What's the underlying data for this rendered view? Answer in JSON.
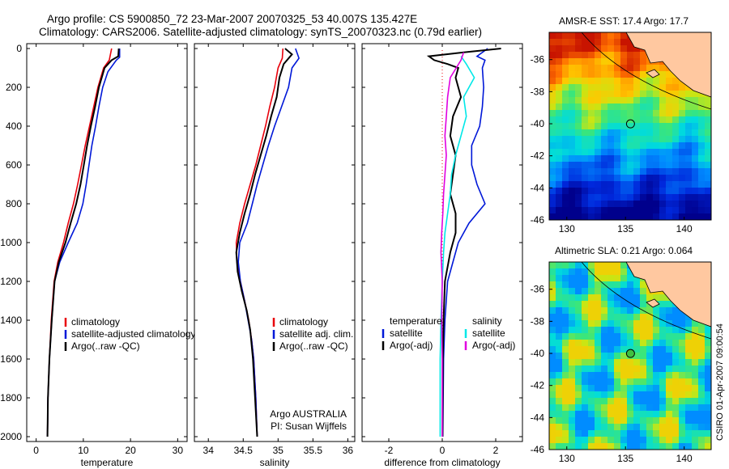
{
  "header": {
    "line1": "Argo profile: CS 5900850_72 23-Mar-2007 20070325_53 40.007S 135.427E",
    "line2": "Climatology: CARS2006. Satellite-adjusted climatology: synTS_20070323.nc (0.79d earlier)"
  },
  "side_label": "CSIRO 01-Apr-2007 09:00:54",
  "colors": {
    "climatology": "#e8000b",
    "satellite": "#0018d8",
    "argo": "#000000",
    "sat_salinity": "#00e8e8",
    "argo_salinity": "#e000e0",
    "land": "#ffc8a0"
  },
  "chart_data": [
    {
      "type": "line",
      "xlabel": "temperature",
      "ylim": [
        2000,
        0
      ],
      "xlim": [
        -2,
        32
      ],
      "xticks": [
        0,
        10,
        20,
        30
      ],
      "yticks": [
        0,
        200,
        400,
        600,
        800,
        1000,
        1200,
        1400,
        1600,
        1800,
        2000
      ],
      "legend": [
        "climatology",
        "satellite-adjusted climatology",
        "Argo(..raw -QC)"
      ],
      "series": [
        {
          "name": "climatology",
          "color": "#e8000b",
          "points": [
            [
              16,
              0
            ],
            [
              15.5,
              60
            ],
            [
              14.3,
              100
            ],
            [
              13.1,
              200
            ],
            [
              12.2,
              300
            ],
            [
              11.3,
              400
            ],
            [
              10.4,
              500
            ],
            [
              9.6,
              600
            ],
            [
              8.8,
              700
            ],
            [
              7.9,
              800
            ],
            [
              6.8,
              900
            ],
            [
              5.8,
              1000
            ],
            [
              4.6,
              1100
            ],
            [
              3.8,
              1200
            ],
            [
              3.2,
              1400
            ],
            [
              2.8,
              1600
            ],
            [
              2.5,
              1800
            ],
            [
              2.4,
              2000
            ]
          ]
        },
        {
          "name": "satellite-adjusted climatology",
          "color": "#0018d8",
          "points": [
            [
              17.7,
              0
            ],
            [
              17.7,
              45
            ],
            [
              17,
              60
            ],
            [
              15.2,
              120
            ],
            [
              14.1,
              200
            ],
            [
              13.3,
              300
            ],
            [
              12.6,
              400
            ],
            [
              11.8,
              500
            ],
            [
              11.2,
              600
            ],
            [
              10.6,
              700
            ],
            [
              9.9,
              800
            ],
            [
              8.7,
              900
            ],
            [
              6.8,
              1000
            ],
            [
              5,
              1100
            ],
            [
              3.9,
              1200
            ],
            [
              3.3,
              1400
            ],
            [
              2.8,
              1600
            ],
            [
              2.5,
              1800
            ],
            [
              2.4,
              2000
            ]
          ]
        },
        {
          "name": "Argo(..raw -QC)",
          "color": "#000000",
          "points": [
            [
              17.5,
              0
            ],
            [
              17.4,
              40
            ],
            [
              16,
              60
            ],
            [
              14.5,
              100
            ],
            [
              13.3,
              200
            ],
            [
              12.5,
              300
            ],
            [
              11.6,
              400
            ],
            [
              10.8,
              500
            ],
            [
              10.1,
              600
            ],
            [
              9.4,
              700
            ],
            [
              8.5,
              800
            ],
            [
              7.3,
              900
            ],
            [
              6.2,
              1000
            ],
            [
              4.8,
              1100
            ],
            [
              3.9,
              1200
            ],
            [
              3.3,
              1400
            ],
            [
              2.8,
              1600
            ],
            [
              2.5,
              1800
            ],
            [
              2.4,
              2000
            ]
          ]
        }
      ]
    },
    {
      "type": "line",
      "xlabel": "salinity",
      "ylim": [
        2000,
        0
      ],
      "xlim": [
        33.8,
        36.1
      ],
      "xticks": [
        34,
        34.5,
        35,
        35.5,
        36
      ],
      "legend": [
        "climatology",
        "satellite adj. clim.",
        "Argo(..raw -QC)"
      ],
      "annotation": [
        "Argo AUSTRALIA",
        "PI: Susan Wijffels"
      ],
      "series": [
        {
          "name": "climatology",
          "color": "#e8000b",
          "points": [
            [
              35.07,
              0
            ],
            [
              35.06,
              50
            ],
            [
              35.0,
              100
            ],
            [
              34.95,
              200
            ],
            [
              34.88,
              300
            ],
            [
              34.82,
              400
            ],
            [
              34.75,
              500
            ],
            [
              34.68,
              600
            ],
            [
              34.6,
              700
            ],
            [
              34.52,
              800
            ],
            [
              34.45,
              900
            ],
            [
              34.4,
              1000
            ],
            [
              34.41,
              1100
            ],
            [
              34.46,
              1200
            ],
            [
              34.52,
              1300
            ],
            [
              34.58,
              1400
            ],
            [
              34.62,
              1500
            ],
            [
              34.65,
              1600
            ],
            [
              34.68,
              1800
            ],
            [
              34.7,
              2000
            ]
          ]
        },
        {
          "name": "satellite adj. clim.",
          "color": "#0018d8",
          "points": [
            [
              35.25,
              0
            ],
            [
              35.3,
              50
            ],
            [
              35.2,
              100
            ],
            [
              35.15,
              200
            ],
            [
              35.05,
              300
            ],
            [
              34.95,
              400
            ],
            [
              34.86,
              500
            ],
            [
              34.78,
              600
            ],
            [
              34.7,
              700
            ],
            [
              34.63,
              800
            ],
            [
              34.56,
              900
            ],
            [
              34.45,
              1000
            ],
            [
              34.43,
              1100
            ],
            [
              34.46,
              1200
            ],
            [
              34.52,
              1300
            ],
            [
              34.57,
              1400
            ],
            [
              34.62,
              1500
            ],
            [
              34.65,
              1600
            ],
            [
              34.68,
              1800
            ],
            [
              34.7,
              2000
            ]
          ]
        },
        {
          "name": "Argo(..raw -QC)",
          "color": "#000000",
          "points": [
            [
              35.1,
              0
            ],
            [
              35.2,
              30
            ],
            [
              35.08,
              80
            ],
            [
              35.02,
              150
            ],
            [
              34.98,
              250
            ],
            [
              34.9,
              350
            ],
            [
              34.83,
              450
            ],
            [
              34.75,
              550
            ],
            [
              34.67,
              650
            ],
            [
              34.6,
              750
            ],
            [
              34.52,
              850
            ],
            [
              34.45,
              950
            ],
            [
              34.4,
              1050
            ],
            [
              34.42,
              1150
            ],
            [
              34.48,
              1250
            ],
            [
              34.55,
              1350
            ],
            [
              34.6,
              1450
            ],
            [
              34.64,
              1600
            ],
            [
              34.67,
              1800
            ],
            [
              34.7,
              2000
            ]
          ]
        }
      ]
    },
    {
      "type": "line",
      "xlabel": "difference from climatology",
      "ylim": [
        2000,
        0
      ],
      "xlim": [
        -3,
        3
      ],
      "xticks": [
        -2,
        0,
        2
      ],
      "legend_temperature": {
        "title": "temperature",
        "items": [
          "satellite",
          "Argo(-adj)"
        ]
      },
      "legend_salinity": {
        "title": "salinity",
        "items": [
          "satellite",
          "Argo(-adj)"
        ]
      },
      "series": [
        {
          "name": "satellite",
          "color": "#0018d8",
          "points": [
            [
              1.7,
              0
            ],
            [
              1.3,
              40
            ],
            [
              1.6,
              60
            ],
            [
              1.5,
              100
            ],
            [
              1.55,
              200
            ],
            [
              1.5,
              300
            ],
            [
              1.4,
              400
            ],
            [
              1.1,
              500
            ],
            [
              1.1,
              600
            ],
            [
              1.3,
              700
            ],
            [
              1.6,
              800
            ],
            [
              1.0,
              900
            ],
            [
              0.6,
              1000
            ],
            [
              0.4,
              1100
            ],
            [
              0.2,
              1200
            ],
            [
              0.1,
              1400
            ],
            [
              0.05,
              1600
            ],
            [
              0.02,
              2000
            ]
          ]
        },
        {
          "name": "Argo(-adj)",
          "color": "#000000",
          "points": [
            [
              2.2,
              0
            ],
            [
              0.8,
              20
            ],
            [
              -0.5,
              40
            ],
            [
              -0.3,
              60
            ],
            [
              0.2,
              80
            ],
            [
              0.6,
              100
            ],
            [
              0.5,
              150
            ],
            [
              0.7,
              250
            ],
            [
              0.4,
              350
            ],
            [
              0.3,
              450
            ],
            [
              0.5,
              550
            ],
            [
              0.4,
              650
            ],
            [
              0.3,
              750
            ],
            [
              0.5,
              850
            ],
            [
              0.5,
              950
            ],
            [
              0.3,
              1050
            ],
            [
              0.1,
              1200
            ],
            [
              0.05,
              1400
            ],
            [
              0.02,
              1600
            ],
            [
              0.01,
              2000
            ]
          ]
        },
        {
          "name": "satellite",
          "color": "#00e8e8",
          "points": [
            [
              0.7,
              40
            ],
            [
              0.9,
              80
            ],
            [
              1.2,
              150
            ],
            [
              0.8,
              250
            ],
            [
              0.9,
              350
            ],
            [
              0.7,
              450
            ],
            [
              0.5,
              550
            ],
            [
              0.35,
              650
            ],
            [
              0.3,
              750
            ],
            [
              0.2,
              850
            ],
            [
              0.1,
              950
            ],
            [
              0.05,
              1050
            ],
            [
              0,
              1200
            ],
            [
              -0.05,
              1400
            ],
            [
              -0.08,
              1600
            ],
            [
              -0.08,
              2000
            ]
          ]
        },
        {
          "name": "Argo(-adj)",
          "color": "#e000e0",
          "points": [
            [
              0.8,
              20
            ],
            [
              0.7,
              60
            ],
            [
              0.3,
              150
            ],
            [
              0.2,
              250
            ],
            [
              0.15,
              350
            ],
            [
              0.1,
              450
            ],
            [
              0.15,
              550
            ],
            [
              0.1,
              650
            ],
            [
              0.05,
              750
            ],
            [
              0.02,
              850
            ],
            [
              -0.02,
              950
            ],
            [
              -0.05,
              1050
            ],
            [
              0,
              1200
            ],
            [
              -0.02,
              1400
            ],
            [
              0,
              1600
            ],
            [
              0,
              2000
            ]
          ]
        }
      ]
    },
    {
      "type": "heatmap",
      "title": "AMSR-E SST: 17.4  Argo: 17.7",
      "xticks": [
        130,
        135,
        140
      ],
      "yticks": [
        -36,
        -38,
        -40,
        -42,
        -44,
        -46
      ],
      "xlim": [
        128.5,
        142.3
      ],
      "ylim": [
        -46,
        -34.3
      ],
      "marker": [
        135.427,
        -40.007
      ]
    },
    {
      "type": "heatmap",
      "title": "Altimetric SLA: 0.21  Argo: 0.064",
      "xticks": [
        130,
        135,
        140
      ],
      "yticks": [
        -36,
        -38,
        -40,
        -42,
        -44,
        -46
      ],
      "xlim": [
        128.5,
        142.3
      ],
      "ylim": [
        -46,
        -34.3
      ],
      "marker": [
        135.427,
        -40.007
      ]
    }
  ]
}
